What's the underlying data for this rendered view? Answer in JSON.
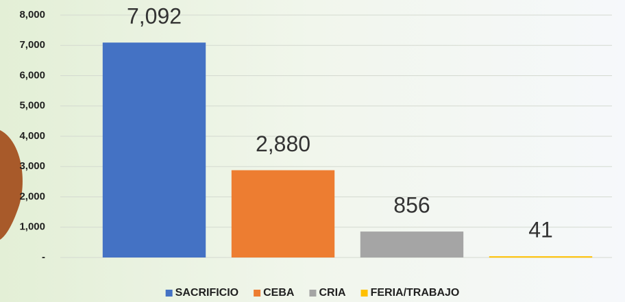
{
  "chart_data": {
    "type": "bar",
    "series": [
      {
        "name": "SACRIFICIO",
        "color": "#4472c4",
        "values": [
          7092
        ],
        "value_labels": [
          "7,092"
        ]
      },
      {
        "name": "CEBA",
        "color": "#ed7d31",
        "values": [
          2880
        ],
        "value_labels": [
          "2,880"
        ]
      },
      {
        "name": "CRIA",
        "color": "#a5a5a5",
        "values": [
          856
        ],
        "value_labels": [
          "856"
        ]
      },
      {
        "name": "FERIA/TRABAJO",
        "color": "#ffc000",
        "values": [
          41
        ],
        "value_labels": [
          "41"
        ]
      }
    ],
    "ylim": [
      0,
      8000
    ],
    "yticks": [
      {
        "value": 0,
        "label": "-"
      },
      {
        "value": 1000,
        "label": "1,000"
      },
      {
        "value": 2000,
        "label": "2,000"
      },
      {
        "value": 3000,
        "label": "3,000"
      },
      {
        "value": 4000,
        "label": "4,000"
      },
      {
        "value": 5000,
        "label": "5,000"
      },
      {
        "value": 6000,
        "label": "6,000"
      },
      {
        "value": 7000,
        "label": "7,000"
      },
      {
        "value": 8000,
        "label": "8,000"
      }
    ],
    "grid": true,
    "legend": "bottom"
  }
}
